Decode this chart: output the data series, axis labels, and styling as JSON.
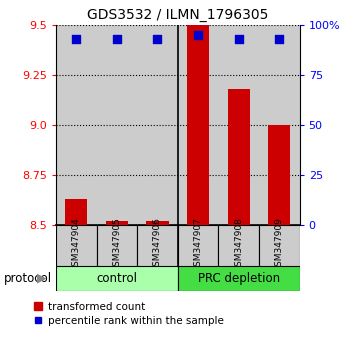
{
  "title": "GDS3532 / ILMN_1796305",
  "samples": [
    "GSM347904",
    "GSM347905",
    "GSM347906",
    "GSM347907",
    "GSM347908",
    "GSM347909"
  ],
  "transformed_counts": [
    8.63,
    8.52,
    8.52,
    9.5,
    9.18,
    9.0
  ],
  "percentile_ranks": [
    93,
    93,
    93,
    95,
    93,
    93
  ],
  "ylim_left": [
    8.5,
    9.5
  ],
  "ylim_right": [
    0,
    100
  ],
  "yticks_left": [
    8.5,
    8.75,
    9.0,
    9.25,
    9.5
  ],
  "yticks_right": [
    0,
    25,
    50,
    75,
    100
  ],
  "bar_color": "#cc0000",
  "dot_color": "#0000cc",
  "control_bg": "#aaffaa",
  "prc_bg": "#44dd44",
  "sample_bg": "#cccccc",
  "bar_base": 8.5,
  "legend_bar_label": "transformed count",
  "legend_dot_label": "percentile rank within the sample",
  "group_label": "protocol",
  "control_label": "control",
  "prc_label": "PRC depletion",
  "n_control": 3,
  "n_prc": 3,
  "xlim": [
    -0.5,
    5.5
  ],
  "bar_width": 0.55
}
